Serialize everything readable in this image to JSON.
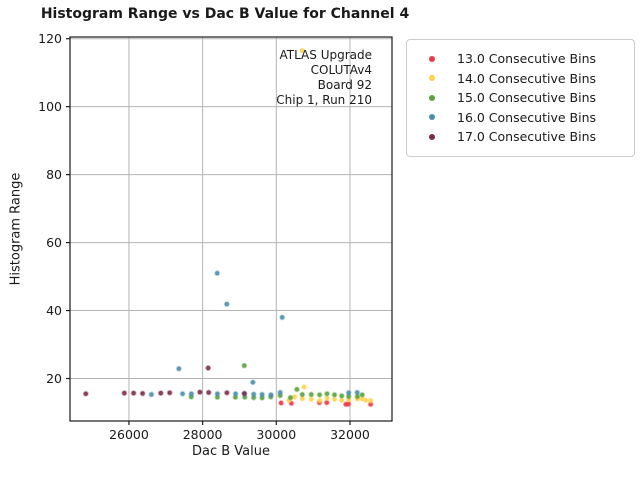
{
  "title": "Histogram Range vs Dac B Value for Channel 4",
  "annotation": {
    "lines": [
      "ATLAS Upgrade",
      "COLUTAv4",
      "Board 92",
      "Chip 1, Run 210"
    ]
  },
  "legend": {
    "items": [
      {
        "label": "13.0 Consecutive Bins",
        "color": "#ea3b46"
      },
      {
        "label": "14.0 Consecutive Bins",
        "color": "#fed34c"
      },
      {
        "label": "15.0 Consecutive Bins",
        "color": "#5ba23e"
      },
      {
        "label": "16.0 Consecutive Bins",
        "color": "#4a8fad"
      },
      {
        "label": "17.0 Consecutive Bins",
        "color": "#7c2d4b"
      }
    ]
  },
  "chart_data": {
    "type": "scatter",
    "title": "Histogram Range vs Dac B Value for Channel 4",
    "xlabel": "Dac B Value",
    "ylabel": "Histogram Range",
    "xlim": [
      24400,
      33140
    ],
    "ylim": [
      7.5,
      120.5
    ],
    "xticks": [
      26000,
      28000,
      30000,
      32000
    ],
    "yticks": [
      20,
      40,
      60,
      80,
      100,
      120
    ],
    "grid": true,
    "grid_color": "#b5b5b5",
    "spine_color": "#1a1a1a",
    "legend_position": "upper right, outside axes",
    "series": [
      {
        "name": "13.0 Consecutive Bins",
        "color": "#ea3b46",
        "points": [
          [
            30130,
            12.8
          ],
          [
            30410,
            12.7
          ],
          [
            31170,
            12.9
          ],
          [
            31370,
            12.9
          ],
          [
            31890,
            12.4
          ],
          [
            31960,
            12.5
          ],
          [
            32560,
            12.4
          ]
        ]
      },
      {
        "name": "14.0 Consecutive Bins",
        "color": "#fed34c",
        "points": [
          [
            30700,
            116.5
          ],
          [
            30345,
            13.6
          ],
          [
            30500,
            14.6
          ],
          [
            30705,
            14.1
          ],
          [
            30755,
            17.5
          ],
          [
            30950,
            13.9
          ],
          [
            31180,
            13.5
          ],
          [
            31375,
            14.2
          ],
          [
            31580,
            13.9
          ],
          [
            31775,
            13.6
          ],
          [
            31965,
            13.8
          ],
          [
            32200,
            14.0
          ],
          [
            32330,
            14.0
          ],
          [
            32430,
            13.6
          ],
          [
            32560,
            13.5
          ]
        ]
      },
      {
        "name": "15.0 Consecutive Bins",
        "color": "#5ba23e",
        "points": [
          [
            27690,
            14.6
          ],
          [
            28400,
            14.5
          ],
          [
            28890,
            14.5
          ],
          [
            29130,
            23.8
          ],
          [
            29145,
            14.5
          ],
          [
            29385,
            14.4
          ],
          [
            29615,
            14.3
          ],
          [
            29850,
            14.6
          ],
          [
            30105,
            15.0
          ],
          [
            30385,
            14.4
          ],
          [
            30560,
            16.8
          ],
          [
            30705,
            15.3
          ],
          [
            30950,
            15.3
          ],
          [
            31175,
            15.2
          ],
          [
            31375,
            15.5
          ],
          [
            31580,
            15.2
          ],
          [
            31775,
            14.9
          ],
          [
            31965,
            14.7
          ],
          [
            32200,
            14.7
          ],
          [
            32330,
            15.2
          ]
        ]
      },
      {
        "name": "16.0 Consecutive Bins",
        "color": "#4a8fad",
        "points": [
          [
            26610,
            15.3
          ],
          [
            27355,
            22.9
          ],
          [
            27455,
            15.5
          ],
          [
            27695,
            15.5
          ],
          [
            28395,
            51.0
          ],
          [
            28400,
            15.5
          ],
          [
            28655,
            41.9
          ],
          [
            28895,
            15.5
          ],
          [
            29135,
            15.5
          ],
          [
            29365,
            18.9
          ],
          [
            29385,
            15.4
          ],
          [
            29615,
            15.3
          ],
          [
            29855,
            15.2
          ],
          [
            30105,
            15.9
          ],
          [
            30160,
            38.0
          ],
          [
            31965,
            15.8
          ],
          [
            32195,
            15.9
          ]
        ]
      },
      {
        "name": "17.0 Consecutive Bins",
        "color": "#7c2d4b",
        "points": [
          [
            24830,
            15.5
          ],
          [
            25875,
            15.7
          ],
          [
            26125,
            15.7
          ],
          [
            26370,
            15.6
          ],
          [
            26865,
            15.7
          ],
          [
            27105,
            15.8
          ],
          [
            27925,
            16.0
          ],
          [
            28150,
            23.1
          ],
          [
            28165,
            15.9
          ],
          [
            28660,
            15.8
          ],
          [
            29135,
            15.6
          ]
        ]
      }
    ]
  }
}
